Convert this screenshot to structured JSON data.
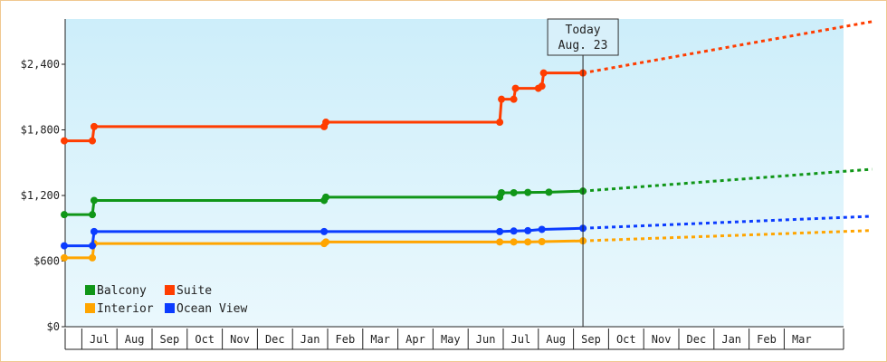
{
  "chart_data": {
    "type": "line",
    "title": "",
    "xlabel": "",
    "ylabel": "",
    "ylim": [
      0,
      2400
    ],
    "yticks": [
      {
        "value": 0,
        "label": "$0"
      },
      {
        "value": 600,
        "label": "$600"
      },
      {
        "value": 1200,
        "label": "$1,200"
      },
      {
        "value": 1800,
        "label": "$1,800"
      },
      {
        "value": 2400,
        "label": "$2,400"
      }
    ],
    "x_labels": [
      "Jul",
      "Aug",
      "Sep",
      "Oct",
      "Nov",
      "Dec",
      "Jan",
      "Feb",
      "Mar",
      "Apr",
      "May",
      "Jun",
      "Jul",
      "Aug",
      "Sep",
      "Oct",
      "Nov",
      "Dec",
      "Jan",
      "Feb",
      "Mar"
    ],
    "annotation": {
      "lines": [
        "Today",
        "Aug. 23"
      ],
      "x": 14.77
    },
    "legend": {
      "placement": "bottom-left",
      "columns": 2
    },
    "series": [
      {
        "name": "Balcony",
        "color": "#109618",
        "points": [
          [
            0,
            1025
          ],
          [
            0.8,
            1025
          ],
          [
            0.85,
            1155
          ],
          [
            7.4,
            1155
          ],
          [
            7.45,
            1185
          ],
          [
            12.4,
            1185
          ],
          [
            12.45,
            1225
          ],
          [
            12.8,
            1225
          ],
          [
            13.2,
            1228
          ],
          [
            13.8,
            1230
          ],
          [
            14.77,
            1240
          ]
        ],
        "forecast": [
          [
            14.77,
            1240
          ],
          [
            23.0,
            1440
          ]
        ]
      },
      {
        "name": "Suite",
        "color": "#ff3d00",
        "points": [
          [
            0,
            1700
          ],
          [
            0.8,
            1700
          ],
          [
            0.85,
            1830
          ],
          [
            7.4,
            1830
          ],
          [
            7.45,
            1870
          ],
          [
            12.4,
            1870
          ],
          [
            12.45,
            2080
          ],
          [
            12.8,
            2080
          ],
          [
            12.85,
            2180
          ],
          [
            13.5,
            2180
          ],
          [
            13.6,
            2200
          ],
          [
            13.65,
            2320
          ],
          [
            14.77,
            2320
          ]
        ],
        "forecast": [
          [
            14.77,
            2320
          ],
          [
            23.0,
            2790
          ]
        ]
      },
      {
        "name": "Interior",
        "color": "#ffa500",
        "points": [
          [
            0,
            630
          ],
          [
            0.8,
            630
          ],
          [
            0.85,
            760
          ],
          [
            7.4,
            760
          ],
          [
            7.45,
            775
          ],
          [
            12.4,
            775
          ],
          [
            12.8,
            775
          ],
          [
            13.2,
            775
          ],
          [
            13.6,
            778
          ],
          [
            14.77,
            785
          ]
        ],
        "forecast": [
          [
            14.77,
            785
          ],
          [
            23.0,
            880
          ]
        ]
      },
      {
        "name": "Ocean View",
        "color": "#0b3cff",
        "points": [
          [
            0,
            740
          ],
          [
            0.8,
            740
          ],
          [
            0.85,
            870
          ],
          [
            7.4,
            870
          ],
          [
            12.4,
            870
          ],
          [
            12.8,
            875
          ],
          [
            13.2,
            878
          ],
          [
            13.6,
            890
          ],
          [
            14.77,
            900
          ]
        ],
        "forecast": [
          [
            14.77,
            900
          ],
          [
            23.0,
            1010
          ]
        ]
      }
    ]
  }
}
